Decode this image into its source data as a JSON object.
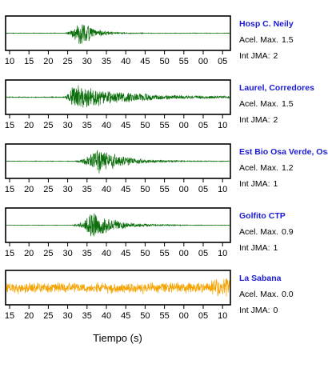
{
  "chart_data": {
    "type": "line",
    "xlabel": "Tiempo (s)",
    "panels": [
      {
        "station": "Hosp C. Neily",
        "accel_label": "Acel. Max.",
        "accel_value": "1.5",
        "jma_label": "Int JMA:",
        "jma_value": "2",
        "color": "#0a6e0a",
        "tick_labels": [
          "10",
          "15",
          "20",
          "25",
          "30",
          "35",
          "40",
          "45",
          "50",
          "55",
          "00",
          "05"
        ],
        "ylim": [
          -1.0,
          1.0
        ],
        "series": {
          "onset_s": 15,
          "peak_s": 20,
          "peak_amp": 0.95,
          "noise": 0.02,
          "rise_s": 4,
          "decay_s": 3.5,
          "secondary_peak_s": 0,
          "secondary_amp": 0
        }
      },
      {
        "station": "Laurel, Corredores",
        "accel_label": "Acel. Max.",
        "accel_value": "1.5",
        "jma_label": "Int JMA:",
        "jma_value": "2",
        "color": "#0a6e0a",
        "tick_labels": [
          "15",
          "20",
          "25",
          "30",
          "35",
          "40",
          "45",
          "50",
          "55",
          "00",
          "05",
          "10"
        ],
        "ylim": [
          -1.0,
          1.0
        ],
        "series": {
          "onset_s": 15,
          "peak_s": 18,
          "peak_amp": 0.9,
          "noise": 0.03,
          "rise_s": 2,
          "decay_s": 14,
          "secondary_peak_s": 0,
          "secondary_amp": 0
        }
      },
      {
        "station": "Est Bio Osa Verde, Osa",
        "accel_label": "Acel. Max.",
        "accel_value": "1.2",
        "jma_label": "Int JMA:",
        "jma_value": "1",
        "color": "#0a6e0a",
        "tick_labels": [
          "15",
          "20",
          "25",
          "30",
          "35",
          "40",
          "45",
          "50",
          "55",
          "00",
          "05",
          "10"
        ],
        "ylim": [
          -1.0,
          1.0
        ],
        "series": {
          "onset_s": 17,
          "peak_s": 25,
          "peak_amp": 0.95,
          "noise": 0.02,
          "rise_s": 6,
          "decay_s": 6,
          "secondary_peak_s": 0,
          "secondary_amp": 0
        }
      },
      {
        "station": "Golfito CTP",
        "accel_label": "Acel. Max.",
        "accel_value": "0.9",
        "jma_label": "Int JMA:",
        "jma_value": "1",
        "color": "#0a6e0a",
        "tick_labels": [
          "15",
          "20",
          "25",
          "30",
          "35",
          "40",
          "45",
          "50",
          "55",
          "00",
          "05",
          "10"
        ],
        "ylim": [
          -1.0,
          1.0
        ],
        "series": {
          "onset_s": 17,
          "peak_s": 23,
          "peak_amp": 0.95,
          "noise": 0.015,
          "rise_s": 3,
          "decay_s": 6,
          "secondary_peak_s": 0,
          "secondary_amp": 0
        }
      },
      {
        "station": "La Sabana",
        "accel_label": "Acel. Max.",
        "accel_value": "0.0",
        "jma_label": "Int JMA:",
        "jma_value": "0",
        "color": "#f5a300",
        "tick_labels": [
          "15",
          "20",
          "25",
          "30",
          "35",
          "40",
          "45",
          "50",
          "55",
          "00",
          "05",
          "10"
        ],
        "ylim": [
          -1.0,
          1.0
        ],
        "series": {
          "onset_s": 0,
          "peak_s": 0,
          "peak_amp": 0,
          "noise": 0.45,
          "rise_s": 0,
          "decay_s": 0,
          "secondary_peak_s": 0,
          "secondary_amp": 0
        }
      }
    ]
  }
}
